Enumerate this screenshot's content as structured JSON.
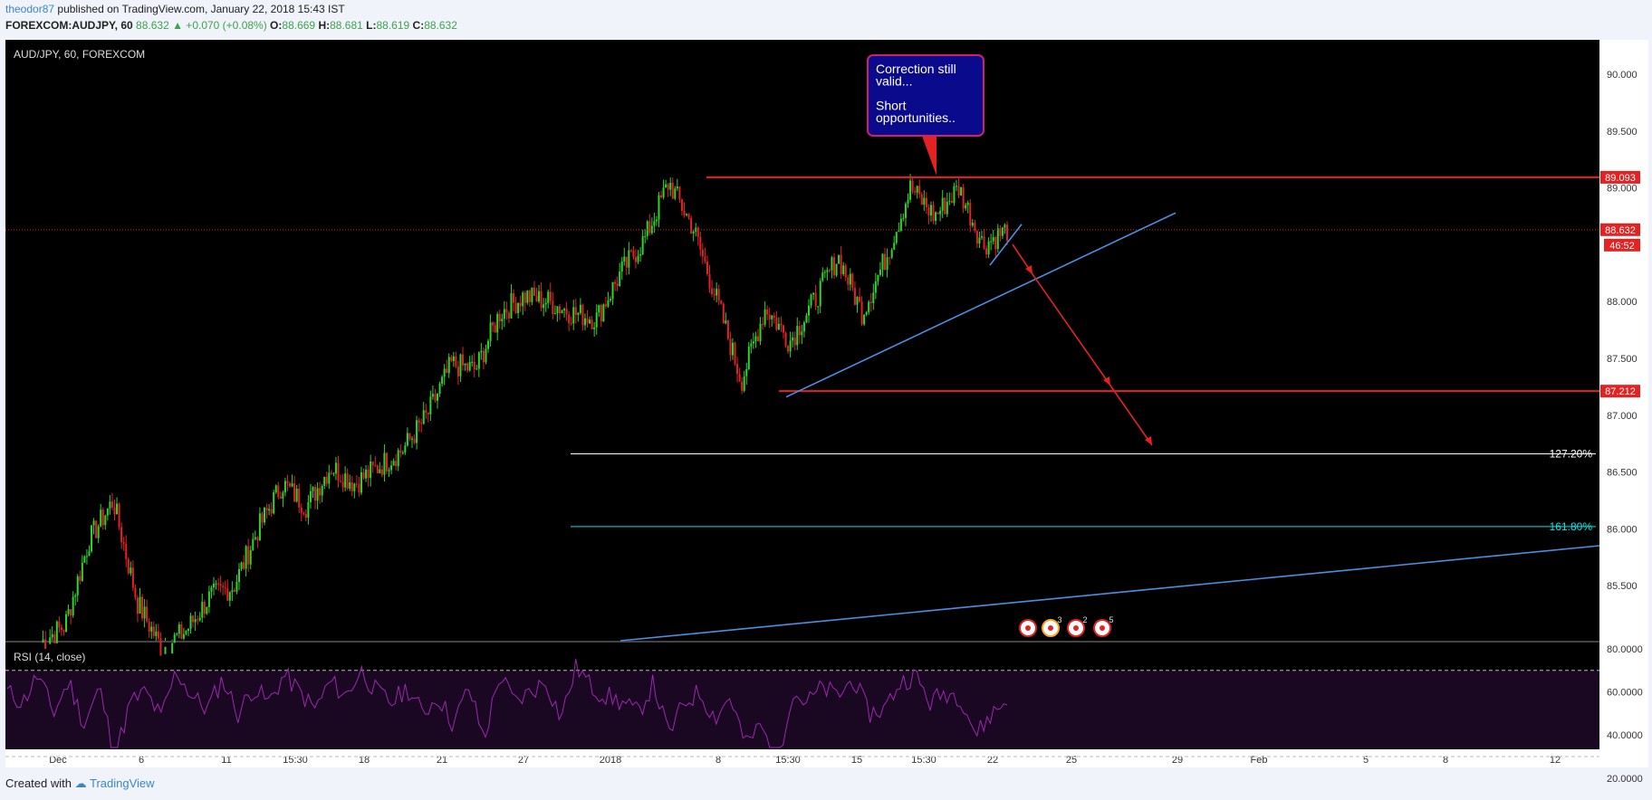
{
  "header": {
    "user": "theodor87",
    "published": "published on TradingView.com, January 22, 2018 15:43 IST",
    "symbol": "FOREXCOM:AUDJPY, 60",
    "price": "88.632",
    "change": "▲ +0.070 (+0.08%)",
    "o_label": "O:",
    "o": "88.669",
    "h_label": "H:",
    "h": "88.681",
    "l_label": "L:",
    "l": "88.619",
    "c_label": "C:",
    "c": "88.632"
  },
  "footer": {
    "created": "Created with",
    "brand": "TradingView"
  },
  "chart_data": {
    "type": "line",
    "title": "AUD/JPY, 60, FOREXCOM",
    "x_ticks": [
      "Dec",
      "6",
      "11",
      "15:30",
      "18",
      "21",
      "27",
      "2018",
      "8",
      "15:30",
      "15",
      "15:30",
      "22",
      "25",
      "29",
      "Feb",
      "5",
      "8",
      "12"
    ],
    "y_ticks": [
      "90.000",
      "89.500",
      "89.000",
      "88.500",
      "88.000",
      "87.500",
      "87.000",
      "86.500",
      "86.000",
      "85.500"
    ],
    "ylim": [
      85.1,
      90.3
    ],
    "series": [
      {
        "values": [
          85.0,
          85.15,
          85.9,
          86.25,
          85.35,
          84.95,
          85.1,
          85.4,
          85.5,
          86.0,
          86.4,
          86.2,
          86.55,
          86.4,
          86.55,
          86.7,
          87.0,
          87.45,
          87.4,
          87.9,
          88.05,
          88.0,
          87.9,
          87.85,
          88.25,
          88.55,
          89.05,
          88.65,
          88.0,
          87.3,
          87.95,
          87.65,
          88.0,
          88.4,
          87.9,
          88.4,
          89.0,
          88.75,
          89.0,
          88.5,
          88.63
        ]
      }
    ],
    "levels": [
      {
        "label": "89.093",
        "value": 89.093,
        "color": "#e52222"
      },
      {
        "label": "88.632",
        "value": 88.632,
        "color": "#e52222"
      },
      {
        "label": "87.212",
        "value": 87.212,
        "color": "#e52222"
      }
    ],
    "countdown": "46:52",
    "fib_levels": [
      {
        "label": "127.20%",
        "value": 86.66,
        "color": "#ffffff"
      },
      {
        "label": "161.80%",
        "value": 86.02,
        "color": "#00e5e5"
      }
    ],
    "annotation": {
      "lines": [
        "Correction still",
        "valid...",
        "",
        "Short",
        "opportunities.."
      ]
    },
    "event_counts": [
      "",
      "3",
      "2",
      "5"
    ],
    "rsi": {
      "label": "RSI (14, close)",
      "ticks": [
        "80.0000",
        "60.0000",
        "40.0000",
        "20.0000"
      ],
      "ylim": [
        15,
        82
      ],
      "bands": [
        70,
        30
      ],
      "values": [
        60,
        55,
        68,
        50,
        65,
        45,
        62,
        30,
        55,
        60,
        48,
        70,
        58,
        52,
        66,
        50,
        62,
        55,
        68,
        60,
        52,
        65,
        58,
        70,
        60,
        55,
        62,
        50,
        58,
        45,
        62,
        38,
        68,
        55,
        60,
        65,
        48,
        72,
        62,
        58,
        55,
        50,
        64,
        40,
        55,
        60,
        48,
        58,
        35,
        45,
        25,
        60,
        55,
        62,
        58,
        66,
        50,
        52,
        64,
        68,
        55,
        60,
        58,
        40,
        50,
        56
      ]
    },
    "colors": {
      "up": "#2dd52d",
      "down": "#e52222",
      "trend": "#4a90e2",
      "rsi": "#9c27b0"
    }
  }
}
